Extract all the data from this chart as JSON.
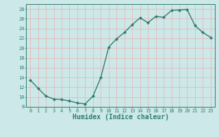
{
  "x": [
    0,
    1,
    2,
    3,
    4,
    5,
    6,
    7,
    8,
    9,
    10,
    11,
    12,
    13,
    14,
    15,
    16,
    17,
    18,
    19,
    20,
    21,
    22,
    23
  ],
  "y": [
    13.5,
    11.8,
    10.2,
    9.6,
    9.5,
    9.2,
    8.8,
    8.6,
    10.2,
    14.0,
    20.2,
    21.9,
    23.2,
    24.8,
    26.2,
    25.2,
    26.5,
    26.3,
    27.7,
    27.8,
    27.9,
    24.6,
    23.2,
    22.2
  ],
  "line_color": "#2e7d6e",
  "marker": "D",
  "marker_size": 2.2,
  "bg_color": "#cce8e8",
  "grid_color": "#e8b8b8",
  "xlabel": "Humidex (Indice chaleur)",
  "xlim": [
    -0.5,
    23.5
  ],
  "ylim": [
    8,
    29
  ],
  "yticks": [
    8,
    10,
    12,
    14,
    16,
    18,
    20,
    22,
    24,
    26,
    28
  ],
  "xticks": [
    0,
    1,
    2,
    3,
    4,
    5,
    6,
    7,
    8,
    9,
    10,
    11,
    12,
    13,
    14,
    15,
    16,
    17,
    18,
    19,
    20,
    21,
    22,
    23
  ],
  "tick_label_fontsize": 5.0,
  "xlabel_fontsize": 7.0,
  "line_width": 1.0
}
